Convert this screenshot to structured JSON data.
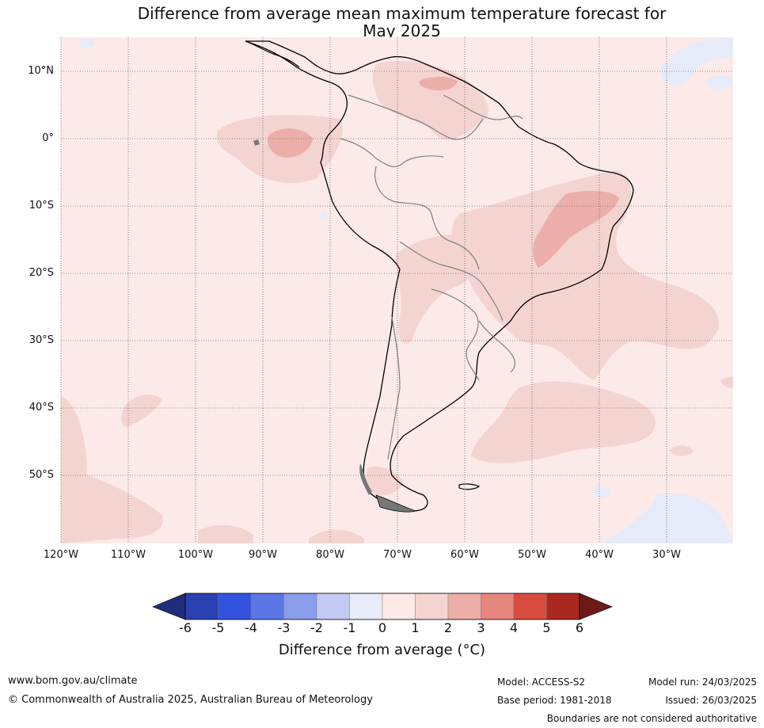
{
  "title": {
    "line1": "Difference from average mean maximum temperature forecast for",
    "line2": "May 2025"
  },
  "map": {
    "latitude_labels": [
      "10°N",
      "0°",
      "10°S",
      "20°S",
      "30°S",
      "40°S",
      "50°S"
    ],
    "longitude_labels": [
      "120°W",
      "110°W",
      "100°W",
      "90°W",
      "80°W",
      "70°W",
      "60°W",
      "50°W",
      "40°W",
      "30°W"
    ],
    "region": "South America",
    "colors": {
      "background_anomaly_0_to_1": "#fbeae8",
      "anomaly_1_to_2": "#f4d4d1",
      "anomaly_2_to_3": "#ecaea9",
      "anomaly_minus1_to_0": "#e6ebfa",
      "coastline": "#000000",
      "borders": "#808080"
    }
  },
  "colorbar": {
    "ticks": [
      "-6",
      "-5",
      "-4",
      "-3",
      "-2",
      "-1",
      "0",
      "1",
      "2",
      "3",
      "4",
      "5",
      "6"
    ],
    "colors": [
      "#1f2d7a",
      "#2a3fb0",
      "#3352e0",
      "#5d76e6",
      "#8a9deb",
      "#c2caf3",
      "#e8ebfa",
      "#fbeae8",
      "#f4d4d1",
      "#ecaea9",
      "#e7867e",
      "#d94b3e",
      "#a9281f",
      "#6e1a17"
    ],
    "label": "Difference from average (°C)"
  },
  "footer": {
    "website": "www.bom.gov.au/climate",
    "copyright": "© Commonwealth of Australia 2025, Australian Bureau of Meteorology",
    "model": "Model: ACCESS-S2",
    "base_period": "Base period: 1981-2018",
    "model_run": "Model run: 24/03/2025",
    "issued": "Issued: 26/03/2025",
    "disclaimer": "Boundaries are not considered authoritative"
  }
}
